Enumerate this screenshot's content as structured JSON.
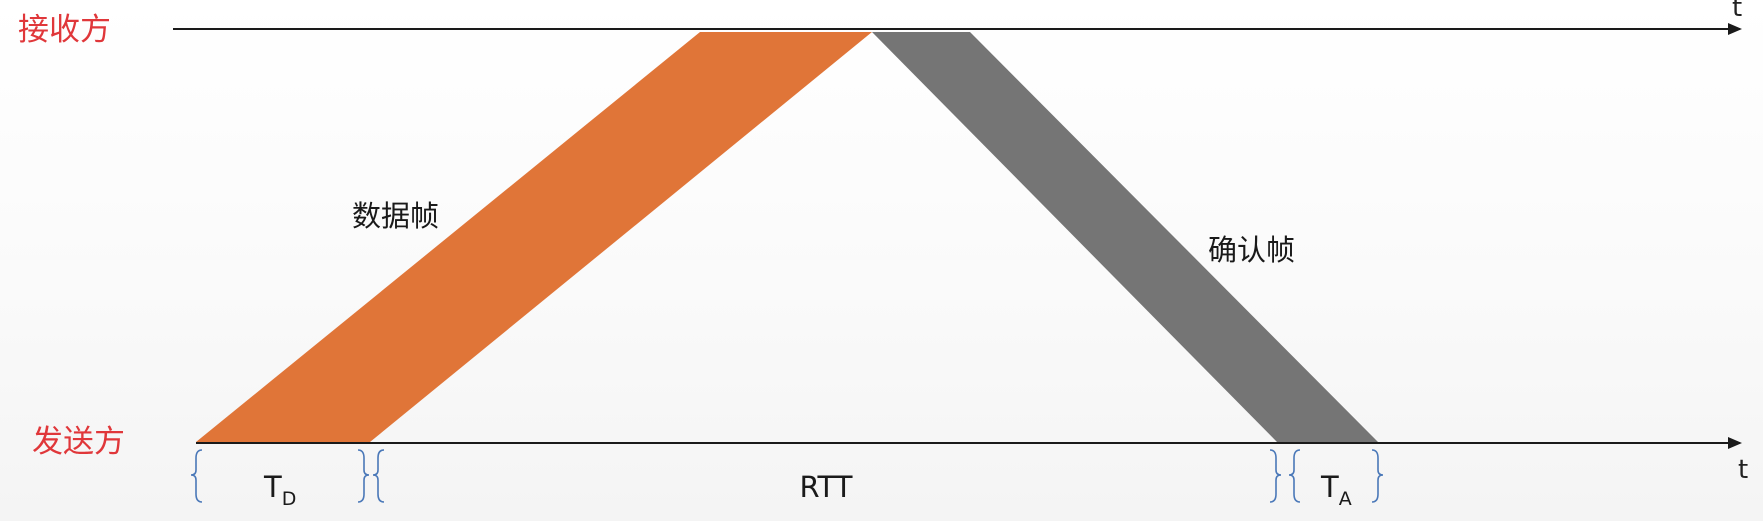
{
  "labels": {
    "receiver": "接收方",
    "sender": "发送方",
    "data_frame": "数据帧",
    "ack_frame": "确认帧",
    "time_axis_top": "t",
    "time_axis_bottom": "t"
  },
  "measurements": {
    "td_main": "T",
    "td_sub": "D",
    "rtt": "RTT",
    "ta_main": "T",
    "ta_sub": "A"
  },
  "colors": {
    "data_frame": "#e07538",
    "ack_frame": "#757575",
    "party_labels": "#e0373a",
    "braces": "#4a78b8"
  }
}
